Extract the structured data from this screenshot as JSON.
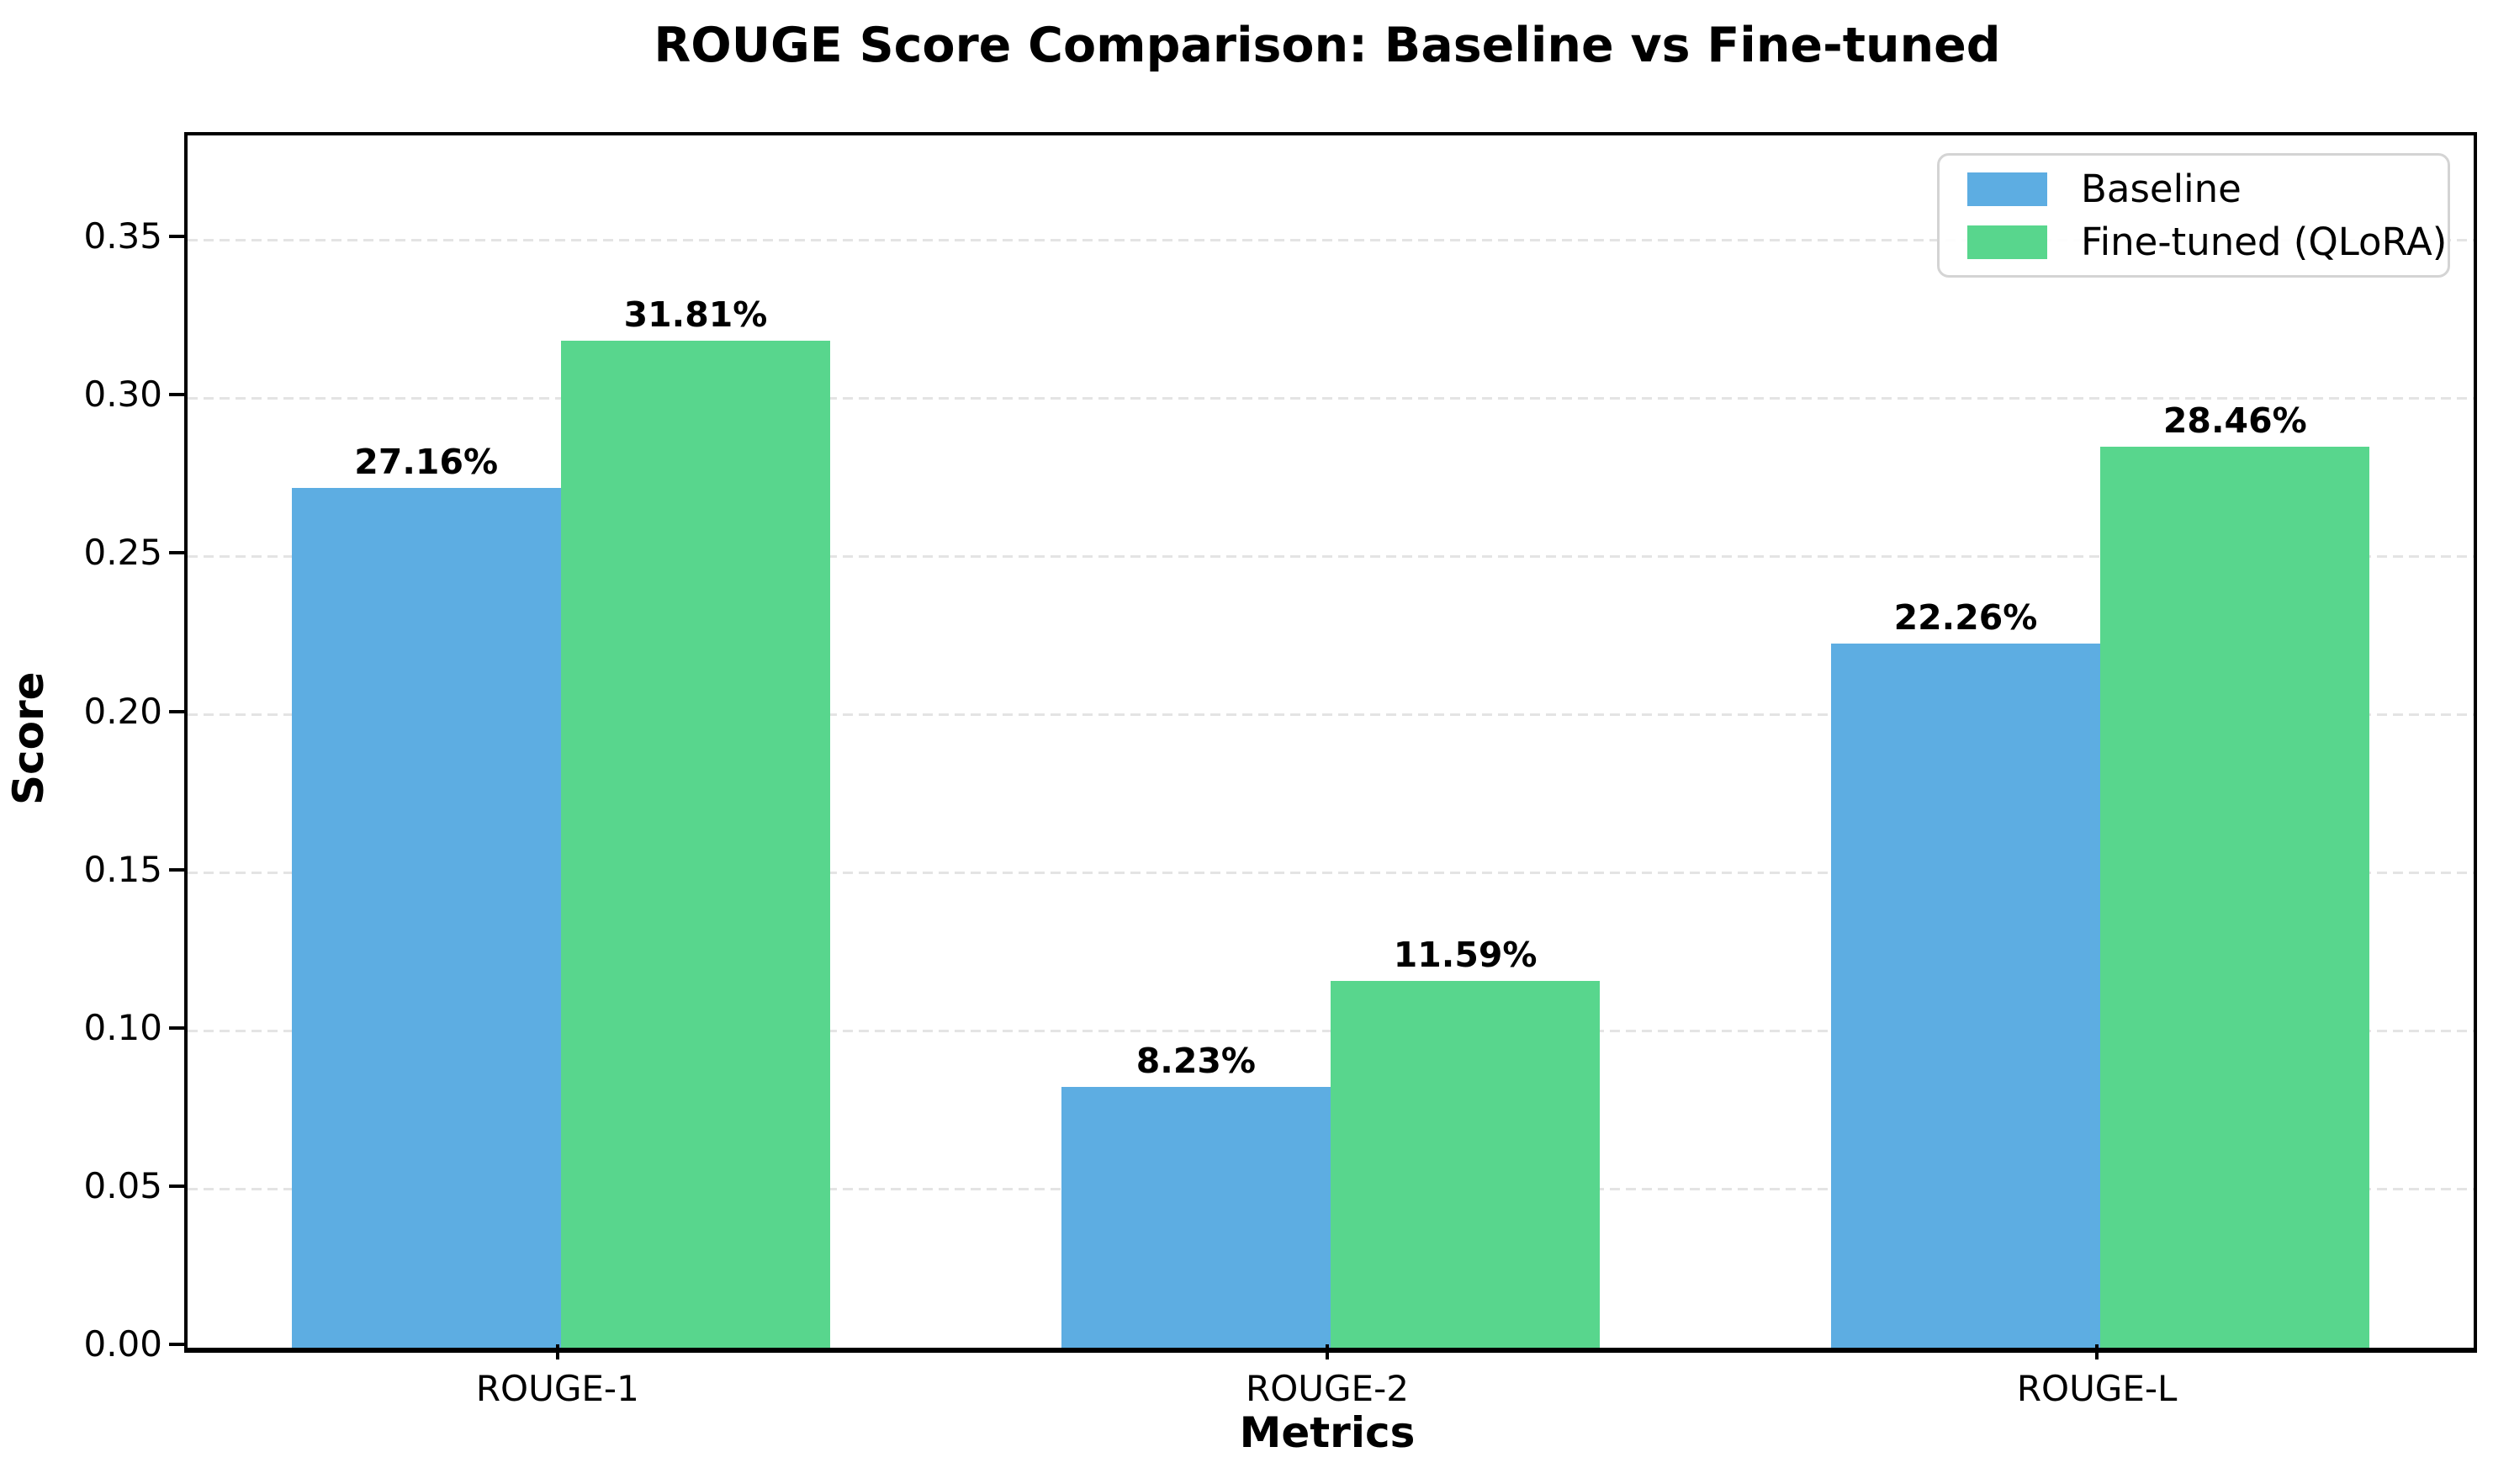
{
  "chart_data": {
    "type": "bar",
    "title": "ROUGE Score Comparison: Baseline vs Fine-tuned",
    "xlabel": "Metrics",
    "ylabel": "Score",
    "categories": [
      "ROUGE-1",
      "ROUGE-2",
      "ROUGE-L"
    ],
    "series": [
      {
        "name": "Baseline",
        "color": "#5DADE2",
        "values": [
          0.2716,
          0.0823,
          0.2226
        ],
        "value_labels": [
          "27.16%",
          "8.23%",
          "22.26%"
        ]
      },
      {
        "name": "Fine-tuned (QLoRA)",
        "color": "#58D68D",
        "values": [
          0.3181,
          0.1159,
          0.2846
        ],
        "value_labels": [
          "31.81%",
          "11.59%",
          "28.46%"
        ]
      }
    ],
    "ytick_labels": [
      "0.00",
      "0.05",
      "0.10",
      "0.15",
      "0.20",
      "0.25",
      "0.30",
      "0.35"
    ],
    "ytick_values": [
      0.0,
      0.05,
      0.1,
      0.15,
      0.2,
      0.25,
      0.3,
      0.35
    ],
    "ylim": [
      0,
      0.383
    ],
    "xlim": [
      -0.485,
      2.485
    ],
    "bar_width": 0.35,
    "grid": "horizontal-dashed",
    "legend_position": "upper right",
    "colors": {
      "baseline": "#5DADE2",
      "finetuned": "#58D68D",
      "gridline": "#e4e4e4",
      "axis": "#000000",
      "legend_border": "#d4d4d4"
    }
  }
}
